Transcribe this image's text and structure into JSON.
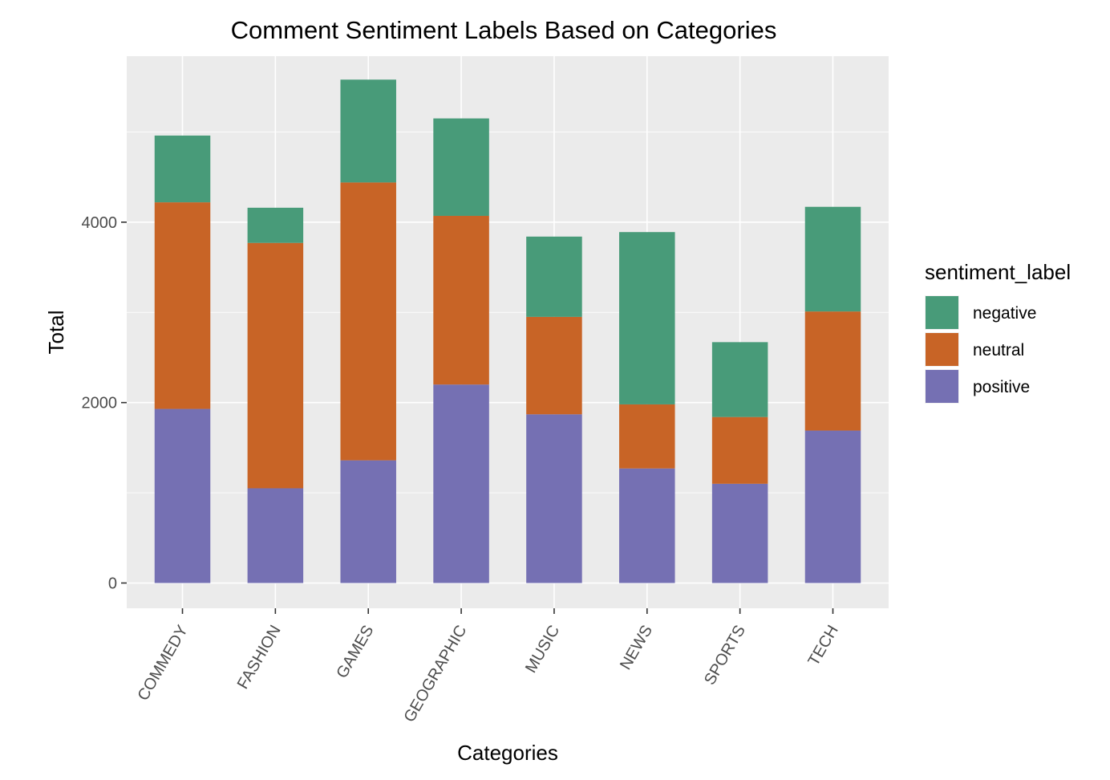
{
  "chart_data": {
    "type": "bar",
    "stacked": true,
    "title": "Comment Sentiment Labels Based on Categories",
    "xlabel": "Categories",
    "ylabel": "Total",
    "categories": [
      "COMMEDY",
      "FASHION",
      "GAMES",
      "GEOGRAPHIC",
      "MUSIC",
      "NEWS",
      "SPORTS",
      "TECH"
    ],
    "series": [
      {
        "name": "positive",
        "color": "#7570b3",
        "values": [
          1930,
          1050,
          1360,
          2200,
          1870,
          1270,
          1100,
          1690
        ]
      },
      {
        "name": "neutral",
        "color": "#c86426",
        "values": [
          2290,
          2720,
          3080,
          1870,
          1080,
          710,
          740,
          1320
        ]
      },
      {
        "name": "negative",
        "color": "#489b79",
        "values": [
          740,
          390,
          1140,
          1080,
          890,
          1910,
          830,
          1160
        ]
      }
    ],
    "yticks": [
      0,
      2000,
      4000
    ],
    "ytick_labels": [
      "0",
      "2000",
      "4000"
    ],
    "ylim": [
      -280,
      5840
    ],
    "grid": true,
    "background": "#ebebeb",
    "legend": {
      "title": "sentiment_label",
      "position": "right",
      "items": [
        "negative",
        "neutral",
        "positive"
      ]
    }
  }
}
